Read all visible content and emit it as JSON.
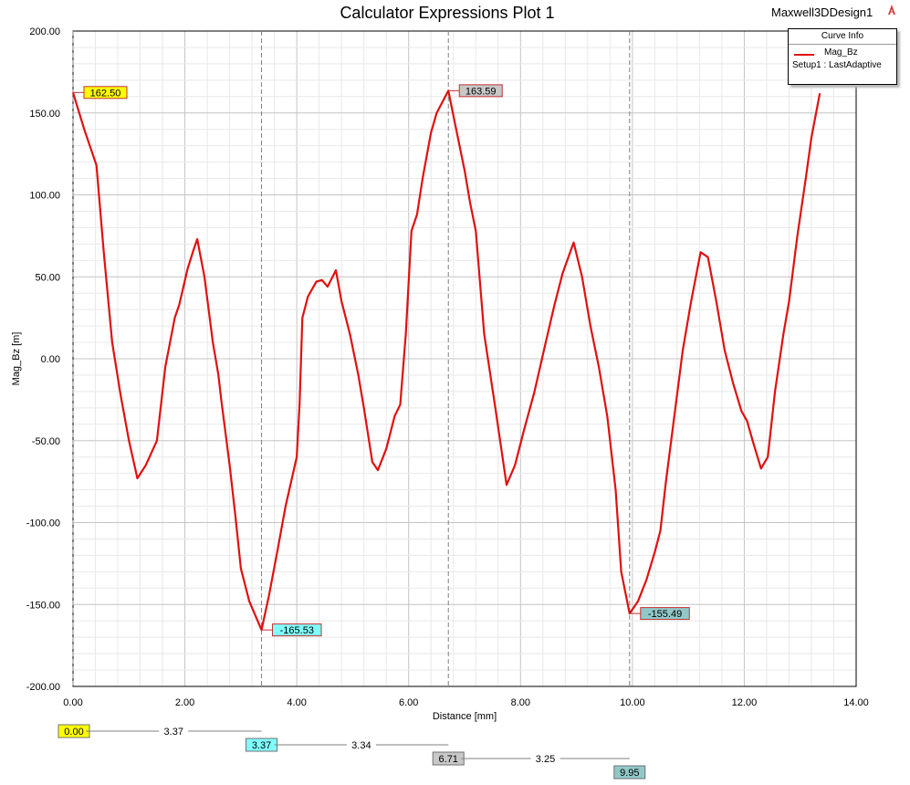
{
  "header": {
    "title": "Calculator Expressions Plot 1",
    "design_name": "Maxwell3DDesign1",
    "design_icon": "maxwell-logo-icon"
  },
  "legend": {
    "title": "Curve Info",
    "series_name": "Mag_Bz",
    "setup": "Setup1 : LastAdaptive"
  },
  "chart_data": {
    "type": "line",
    "title": "Calculator Expressions Plot 1",
    "xlabel": "Distance [mm]",
    "ylabel": "Mag_Bz [m]",
    "xlim": [
      0,
      14
    ],
    "ylim": [
      -200,
      200
    ],
    "x_ticks": [
      "0.00",
      "2.00",
      "4.00",
      "6.00",
      "8.00",
      "10.00",
      "12.00",
      "14.00"
    ],
    "y_ticks": [
      "200.00",
      "150.00",
      "100.00",
      "50.00",
      "0.00",
      "-50.00",
      "-100.00",
      "-150.00",
      "-200.00"
    ],
    "grid": true,
    "legend_position": "top-right",
    "series": [
      {
        "name": "Mag_Bz",
        "color": "#e01010",
        "points": [
          [
            0.0,
            162.5
          ],
          [
            0.2,
            140
          ],
          [
            0.42,
            118
          ],
          [
            0.55,
            65
          ],
          [
            0.7,
            10
          ],
          [
            0.85,
            -22
          ],
          [
            1.0,
            -50
          ],
          [
            1.15,
            -73
          ],
          [
            1.3,
            -65
          ],
          [
            1.5,
            -50
          ],
          [
            1.65,
            -5
          ],
          [
            1.82,
            25
          ],
          [
            1.9,
            33
          ],
          [
            2.05,
            55
          ],
          [
            2.15,
            66
          ],
          [
            2.22,
            73
          ],
          [
            2.35,
            50
          ],
          [
            2.5,
            10
          ],
          [
            2.6,
            -10
          ],
          [
            2.65,
            -25
          ],
          [
            2.8,
            -65
          ],
          [
            2.9,
            -95
          ],
          [
            3.0,
            -128
          ],
          [
            3.15,
            -148
          ],
          [
            3.37,
            -165.53
          ],
          [
            3.5,
            -145
          ],
          [
            3.65,
            -118
          ],
          [
            3.8,
            -90
          ],
          [
            4.0,
            -60
          ],
          [
            4.05,
            -28
          ],
          [
            4.1,
            25
          ],
          [
            4.2,
            38
          ],
          [
            4.35,
            47
          ],
          [
            4.45,
            48
          ],
          [
            4.55,
            44
          ],
          [
            4.7,
            54
          ],
          [
            4.8,
            35
          ],
          [
            4.95,
            15
          ],
          [
            5.1,
            -10
          ],
          [
            5.2,
            -30
          ],
          [
            5.35,
            -63
          ],
          [
            5.45,
            -68
          ],
          [
            5.6,
            -55
          ],
          [
            5.75,
            -35
          ],
          [
            5.85,
            -28
          ],
          [
            5.95,
            15
          ],
          [
            6.05,
            78
          ],
          [
            6.15,
            88
          ],
          [
            6.25,
            110
          ],
          [
            6.4,
            138
          ],
          [
            6.5,
            150
          ],
          [
            6.71,
            163.59
          ],
          [
            6.85,
            140
          ],
          [
            7.0,
            115
          ],
          [
            7.1,
            95
          ],
          [
            7.2,
            78
          ],
          [
            7.35,
            15
          ],
          [
            7.55,
            -30
          ],
          [
            7.75,
            -77
          ],
          [
            7.9,
            -65
          ],
          [
            8.05,
            -45
          ],
          [
            8.25,
            -20
          ],
          [
            8.45,
            10
          ],
          [
            8.6,
            32
          ],
          [
            8.75,
            52
          ],
          [
            8.95,
            71
          ],
          [
            9.1,
            50
          ],
          [
            9.25,
            20
          ],
          [
            9.4,
            -5
          ],
          [
            9.55,
            -35
          ],
          [
            9.7,
            -80
          ],
          [
            9.8,
            -130
          ],
          [
            9.95,
            -155.49
          ],
          [
            10.1,
            -148
          ],
          [
            10.25,
            -135
          ],
          [
            10.4,
            -118
          ],
          [
            10.5,
            -105
          ],
          [
            10.6,
            -75
          ],
          [
            10.75,
            -35
          ],
          [
            10.9,
            5
          ],
          [
            11.05,
            35
          ],
          [
            11.22,
            65
          ],
          [
            11.35,
            62
          ],
          [
            11.5,
            35
          ],
          [
            11.65,
            5
          ],
          [
            11.8,
            -15
          ],
          [
            11.95,
            -32
          ],
          [
            12.05,
            -38
          ],
          [
            12.15,
            -50
          ],
          [
            12.3,
            -67
          ],
          [
            12.42,
            -60
          ],
          [
            12.55,
            -20
          ],
          [
            12.7,
            15
          ],
          [
            12.8,
            35
          ],
          [
            12.95,
            75
          ],
          [
            13.1,
            110
          ],
          [
            13.2,
            135
          ],
          [
            13.35,
            162
          ]
        ]
      }
    ],
    "markers": [
      {
        "x": 0.0,
        "y": 162.5,
        "label": "162.50",
        "fill": "#ffff00"
      },
      {
        "x": 3.37,
        "y": -165.53,
        "label": "-165.53",
        "fill": "#80ffff"
      },
      {
        "x": 6.71,
        "y": 163.59,
        "label": "163.59",
        "fill": "#c8c8c8"
      },
      {
        "x": 9.95,
        "y": -155.49,
        "label": "-155.49",
        "fill": "#90c8c8"
      }
    ],
    "x_markers": [
      {
        "x": 0.0,
        "label": "0.00",
        "fill": "#ffff00"
      },
      {
        "x": 3.37,
        "label": "3.37",
        "fill": "#80ffff"
      },
      {
        "x": 6.71,
        "label": "6.71",
        "fill": "#c8c8c8"
      },
      {
        "x": 9.95,
        "label": "9.95",
        "fill": "#90c8c8"
      }
    ],
    "deltas": [
      "3.37",
      "3.34",
      "3.25"
    ]
  }
}
